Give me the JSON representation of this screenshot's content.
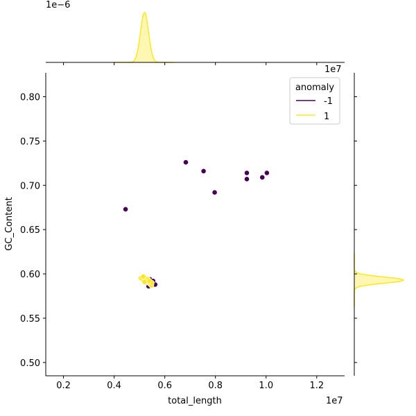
{
  "chart_data": {
    "type": "scatter",
    "title": "",
    "xlabel": "total_length",
    "ylabel": "GC_Content",
    "x_offset_text": "1e7",
    "y_offset_text": "",
    "xlim": [
      0.13,
      1.31
    ],
    "ylim": [
      0.485,
      0.827
    ],
    "x_ticks": [
      {
        "value": 0.2,
        "label": "0.2"
      },
      {
        "value": 0.4,
        "label": "0.4"
      },
      {
        "value": 0.6,
        "label": "0.6"
      },
      {
        "value": 0.8,
        "label": "0.8"
      },
      {
        "value": 1.0,
        "label": "1.0"
      },
      {
        "value": 1.2,
        "label": "1.2"
      }
    ],
    "y_ticks": [
      {
        "value": 0.5,
        "label": "0.50"
      },
      {
        "value": 0.55,
        "label": "0.55"
      },
      {
        "value": 0.6,
        "label": "0.60"
      },
      {
        "value": 0.65,
        "label": "0.65"
      },
      {
        "value": 0.7,
        "label": "0.70"
      },
      {
        "value": 0.75,
        "label": "0.75"
      },
      {
        "value": 0.8,
        "label": "0.80"
      }
    ],
    "grid": false,
    "legend": {
      "title": "anomaly",
      "placement": "upper-right",
      "entries": [
        {
          "label": "-1",
          "color": "#440154"
        },
        {
          "label": "1",
          "color": "#fde725"
        }
      ]
    },
    "series": [
      {
        "name": "-1",
        "color": "#440154",
        "points": [
          [
            0.445,
            0.673
          ],
          [
            0.683,
            0.726
          ],
          [
            0.753,
            0.716
          ],
          [
            0.797,
            0.692
          ],
          [
            0.924,
            0.714
          ],
          [
            0.924,
            0.707
          ],
          [
            0.985,
            0.709
          ],
          [
            1.003,
            0.714
          ],
          [
            0.541,
            0.594
          ],
          [
            0.554,
            0.592
          ],
          [
            0.562,
            0.588
          ],
          [
            0.536,
            0.586
          ],
          [
            0.528,
            0.591
          ],
          [
            0.548,
            0.589
          ]
        ]
      },
      {
        "name": "1",
        "color": "#fde725",
        "points": [
          [
            0.505,
            0.595
          ],
          [
            0.512,
            0.594
          ],
          [
            0.518,
            0.596
          ],
          [
            0.522,
            0.593
          ],
          [
            0.528,
            0.592
          ],
          [
            0.532,
            0.591
          ],
          [
            0.536,
            0.59
          ],
          [
            0.54,
            0.589
          ],
          [
            0.544,
            0.588
          ],
          [
            0.547,
            0.587
          ],
          [
            0.526,
            0.595
          ],
          [
            0.515,
            0.597
          ],
          [
            0.534,
            0.594
          ],
          [
            0.549,
            0.59
          ],
          [
            0.539,
            0.592
          ],
          [
            0.52,
            0.591
          ]
        ]
      }
    ],
    "marginal_top": {
      "offset_text": "1e−6",
      "series_color": "#fde725",
      "peak_x": 0.52,
      "bandwidth": 0.016
    },
    "marginal_right": {
      "offset_text": "1e7",
      "series_color": "#fde725",
      "peak_y": 0.593,
      "bandwidth": 0.0035
    }
  }
}
